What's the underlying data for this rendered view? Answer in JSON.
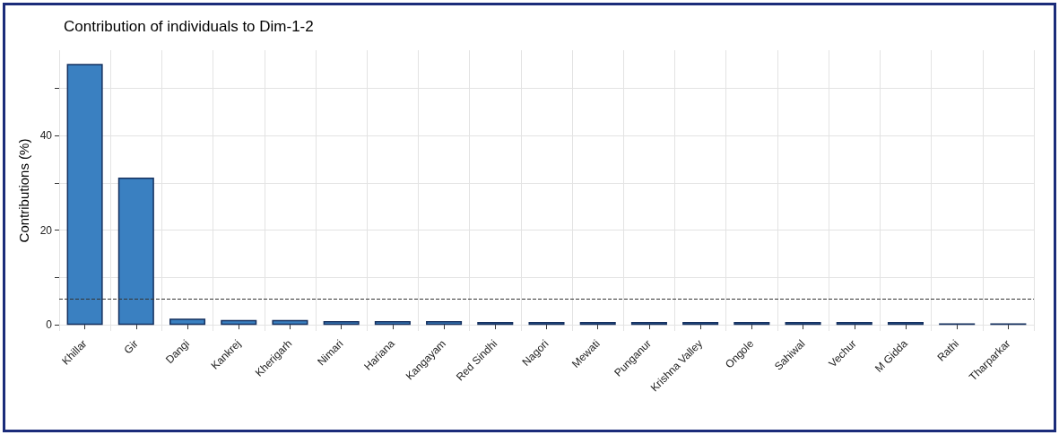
{
  "chart_data": {
    "type": "bar",
    "title": "Contribution of individuals to Dim-1-2",
    "ylabel": "Contributions (%)",
    "categories": [
      "Khillar",
      "Gir",
      "Dangi",
      "Kankrej",
      "Kherigarh",
      "Nimari",
      "Hariana",
      "Kangayam",
      "Red Sindhi",
      "Nagori",
      "Mewati",
      "Punganur",
      "Krishna Valley",
      "Ongole",
      "Sahiwal",
      "Vechur",
      "M Gidda",
      "Rathi",
      "Tharparkar"
    ],
    "values": [
      55.1,
      31.1,
      1.3,
      1.0,
      1.0,
      0.8,
      0.8,
      0.8,
      0.6,
      0.6,
      0.6,
      0.6,
      0.6,
      0.6,
      0.6,
      0.6,
      0.6,
      0.3,
      0.3
    ],
    "color": "#3a80c1",
    "ylim": [
      -1.3,
      58
    ],
    "yticks": [
      0,
      {
        "value": 10,
        "label": null
      },
      20,
      {
        "value": 30,
        "label": null
      },
      40,
      {
        "value": 50,
        "label": null
      }
    ],
    "grid": true,
    "ref_lines": [
      {
        "axis": "y",
        "value": 5.56,
        "color": "#333333",
        "line_style": "dashed"
      }
    ]
  }
}
